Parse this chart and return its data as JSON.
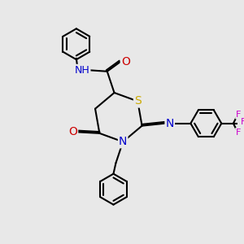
{
  "bg_color": "#e8e8e8",
  "atom_colors": {
    "C": "#000000",
    "N": "#0000cc",
    "O": "#cc0000",
    "S": "#ccaa00",
    "F": "#cc00cc",
    "H": "#444444"
  },
  "bond_color": "#000000",
  "bond_width": 1.5,
  "dbo": 0.06,
  "font_size": 9,
  "fig_size": [
    3.0,
    3.0
  ],
  "dpi": 100
}
